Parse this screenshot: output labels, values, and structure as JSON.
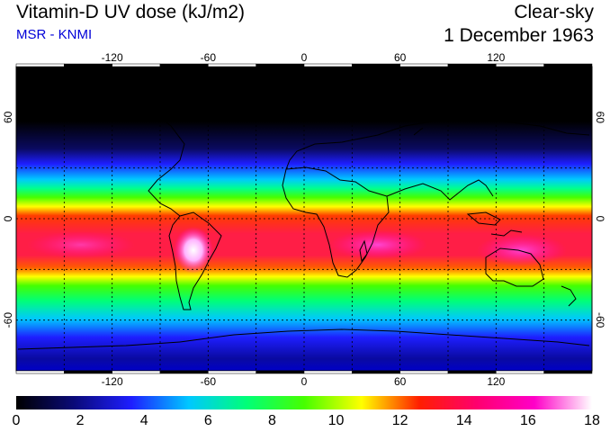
{
  "header": {
    "title": "Vitamin-D UV dose (kJ/m2)",
    "source": "MSR - KNMI",
    "condition": "Clear-sky",
    "date": "1 December 1963"
  },
  "map": {
    "lon_ticks": [
      -120,
      -60,
      0,
      60,
      120
    ],
    "lat_ticks": [
      60,
      0,
      -60
    ],
    "lon_range": [
      -180,
      180
    ],
    "lat_range": [
      -90,
      90
    ],
    "grid": "dashed, every 30 degrees",
    "projection": "equirectangular"
  },
  "colorbar": {
    "min": 0,
    "max": 18,
    "labels": [
      "0",
      "2",
      "4",
      "6",
      "8",
      "10",
      "12",
      "14",
      "16",
      "18"
    ],
    "colors": [
      "#000000",
      "#0a0a78",
      "#1e1eff",
      "#00c8ff",
      "#00ff78",
      "#46ff00",
      "#ffff00",
      "#ff1e00",
      "#ff006e",
      "#ff00c8",
      "#ffffff"
    ]
  },
  "colors": {
    "polar": "#000000",
    "equatorial": "#ff1e46",
    "coastline": "#000000",
    "grid": "#000000"
  }
}
